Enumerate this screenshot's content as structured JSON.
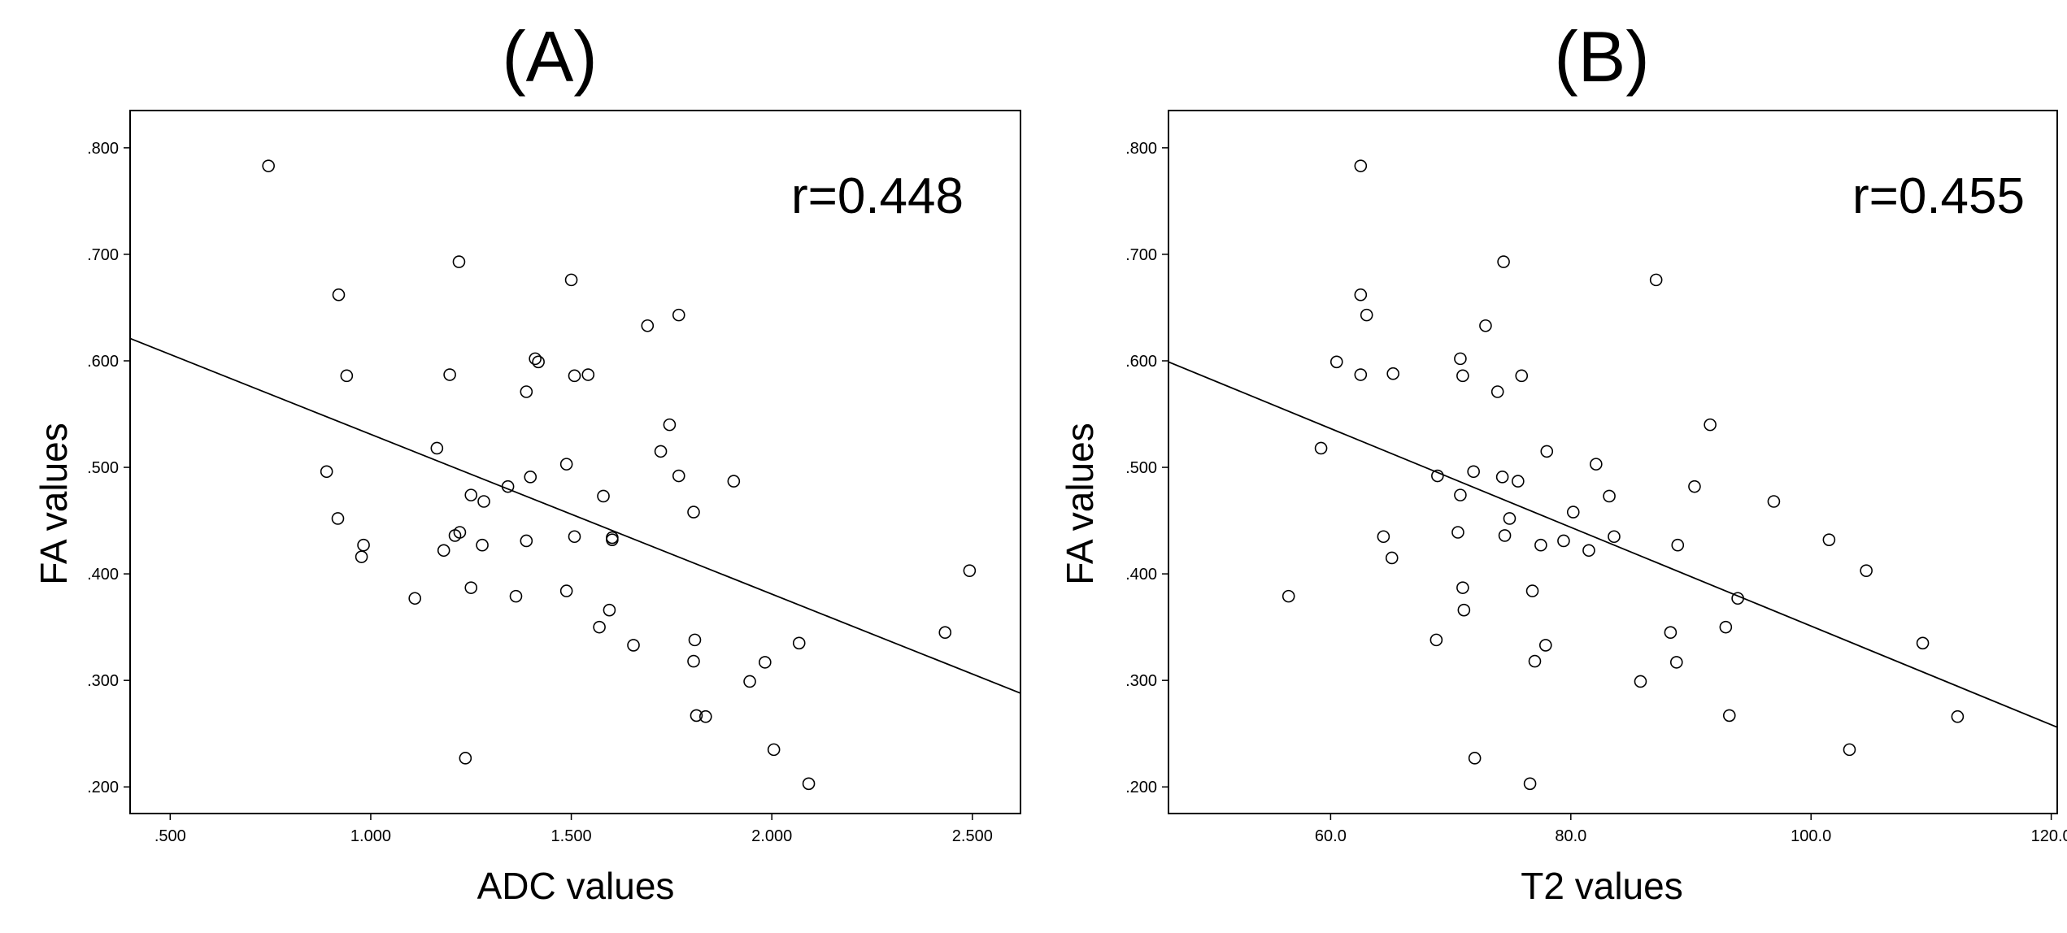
{
  "chart_data": [
    {
      "type": "scatter",
      "panel_label": "(A)",
      "xlabel": "ADC values",
      "ylabel": "FA values",
      "annotation": "r=0.448",
      "xlim": [
        0.4,
        2.62
      ],
      "ylim": [
        0.175,
        0.835
      ],
      "x_ticks": [
        0.5,
        1.0,
        1.5,
        2.0,
        2.5
      ],
      "x_tick_labels": [
        ".500",
        "1.000",
        "1.500",
        "2.000",
        "2.500"
      ],
      "y_ticks": [
        0.2,
        0.3,
        0.4,
        0.5,
        0.6,
        0.7,
        0.8
      ],
      "y_tick_labels": [
        ".200",
        ".300",
        ".400",
        ".500",
        ".600",
        ".700",
        ".800"
      ],
      "fit_line": {
        "x": [
          0.4,
          2.62
        ],
        "y": [
          0.621,
          0.288
        ]
      },
      "points": [
        [
          0.745,
          0.783
        ],
        [
          0.92,
          0.662
        ],
        [
          0.94,
          0.586
        ],
        [
          0.89,
          0.496
        ],
        [
          0.918,
          0.452
        ],
        [
          0.982,
          0.427
        ],
        [
          0.977,
          0.416
        ],
        [
          1.11,
          0.377
        ],
        [
          1.165,
          0.518
        ],
        [
          1.182,
          0.422
        ],
        [
          1.197,
          0.587
        ],
        [
          1.21,
          0.436
        ],
        [
          1.222,
          0.439
        ],
        [
          1.22,
          0.693
        ],
        [
          1.236,
          0.227
        ],
        [
          1.25,
          0.474
        ],
        [
          1.25,
          0.387
        ],
        [
          1.278,
          0.427
        ],
        [
          1.282,
          0.468
        ],
        [
          1.342,
          0.482
        ],
        [
          1.362,
          0.379
        ],
        [
          1.388,
          0.571
        ],
        [
          1.388,
          0.431
        ],
        [
          1.398,
          0.491
        ],
        [
          1.41,
          0.602
        ],
        [
          1.418,
          0.599
        ],
        [
          1.488,
          0.503
        ],
        [
          1.488,
          0.384
        ],
        [
          1.5,
          0.676
        ],
        [
          1.508,
          0.586
        ],
        [
          1.508,
          0.435
        ],
        [
          1.542,
          0.587
        ],
        [
          1.57,
          0.35
        ],
        [
          1.58,
          0.473
        ],
        [
          1.595,
          0.366
        ],
        [
          1.602,
          0.434
        ],
        [
          1.602,
          0.432
        ],
        [
          1.655,
          0.333
        ],
        [
          1.69,
          0.633
        ],
        [
          1.723,
          0.515
        ],
        [
          1.745,
          0.54
        ],
        [
          1.768,
          0.643
        ],
        [
          1.768,
          0.492
        ],
        [
          1.805,
          0.458
        ],
        [
          1.805,
          0.318
        ],
        [
          1.808,
          0.338
        ],
        [
          1.812,
          0.267
        ],
        [
          1.835,
          0.266
        ],
        [
          1.905,
          0.487
        ],
        [
          1.945,
          0.299
        ],
        [
          1.983,
          0.317
        ],
        [
          2.005,
          0.235
        ],
        [
          2.068,
          0.335
        ],
        [
          2.092,
          0.203
        ],
        [
          2.432,
          0.345
        ],
        [
          2.493,
          0.403
        ]
      ]
    },
    {
      "type": "scatter",
      "panel_label": "(B)",
      "xlabel": "T2 values",
      "ylabel": "FA values",
      "annotation": "r=0.455",
      "xlim": [
        46.5,
        120.5
      ],
      "ylim": [
        0.175,
        0.835
      ],
      "x_ticks": [
        60,
        80,
        100,
        120
      ],
      "x_tick_labels": [
        "60.0",
        "80.0",
        "100.0",
        "120.0"
      ],
      "y_ticks": [
        0.2,
        0.3,
        0.4,
        0.5,
        0.6,
        0.7,
        0.8
      ],
      "y_tick_labels": [
        ".200",
        ".300",
        ".400",
        ".500",
        ".600",
        ".700",
        ".800"
      ],
      "fit_line": {
        "x": [
          46.5,
          120.5
        ],
        "y": [
          0.599,
          0.256
        ]
      },
      "points": [
        [
          56.5,
          0.379
        ],
        [
          59.2,
          0.518
        ],
        [
          60.5,
          0.599
        ],
        [
          62.5,
          0.783
        ],
        [
          62.5,
          0.662
        ],
        [
          62.5,
          0.587
        ],
        [
          63.0,
          0.643
        ],
        [
          64.4,
          0.435
        ],
        [
          65.1,
          0.415
        ],
        [
          65.2,
          0.588
        ],
        [
          68.8,
          0.338
        ],
        [
          68.9,
          0.492
        ],
        [
          70.6,
          0.439
        ],
        [
          70.8,
          0.474
        ],
        [
          70.8,
          0.602
        ],
        [
          71.0,
          0.586
        ],
        [
          71.0,
          0.387
        ],
        [
          71.1,
          0.366
        ],
        [
          71.9,
          0.496
        ],
        [
          72.0,
          0.227
        ],
        [
          72.9,
          0.633
        ],
        [
          73.9,
          0.571
        ],
        [
          74.3,
          0.491
        ],
        [
          74.4,
          0.693
        ],
        [
          74.5,
          0.436
        ],
        [
          74.9,
          0.452
        ],
        [
          75.6,
          0.487
        ],
        [
          75.9,
          0.586
        ],
        [
          76.6,
          0.203
        ],
        [
          76.8,
          0.384
        ],
        [
          77.0,
          0.318
        ],
        [
          77.5,
          0.427
        ],
        [
          77.9,
          0.333
        ],
        [
          78.0,
          0.515
        ],
        [
          79.4,
          0.431
        ],
        [
          80.2,
          0.458
        ],
        [
          81.5,
          0.422
        ],
        [
          82.1,
          0.503
        ],
        [
          83.2,
          0.473
        ],
        [
          83.6,
          0.435
        ],
        [
          85.8,
          0.299
        ],
        [
          87.1,
          0.676
        ],
        [
          88.3,
          0.345
        ],
        [
          88.8,
          0.317
        ],
        [
          88.9,
          0.427
        ],
        [
          90.3,
          0.482
        ],
        [
          91.6,
          0.54
        ],
        [
          92.9,
          0.35
        ],
        [
          93.2,
          0.267
        ],
        [
          93.9,
          0.377
        ],
        [
          96.9,
          0.468
        ],
        [
          101.5,
          0.432
        ],
        [
          103.2,
          0.235
        ],
        [
          104.6,
          0.403
        ],
        [
          109.3,
          0.335
        ],
        [
          112.2,
          0.266
        ]
      ]
    }
  ]
}
